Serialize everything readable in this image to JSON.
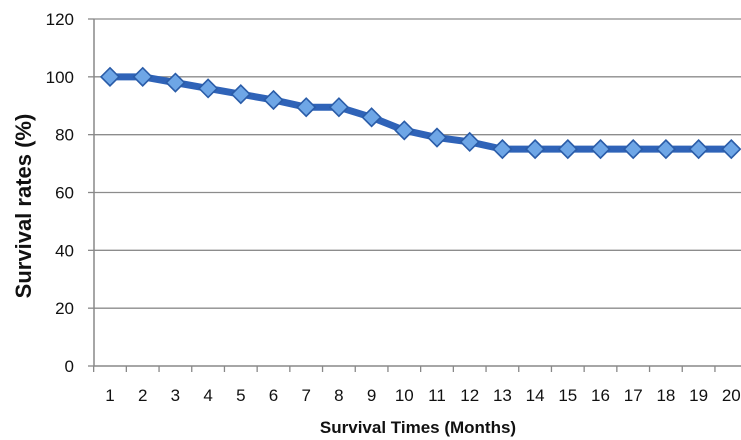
{
  "chart_data": {
    "type": "line",
    "title": "",
    "xlabel": "Survival Times (Months)",
    "ylabel": "Survival rates (%)",
    "x": [
      1,
      2,
      3,
      4,
      5,
      6,
      7,
      8,
      9,
      10,
      11,
      12,
      13,
      14,
      15,
      16,
      17,
      18,
      19,
      20
    ],
    "x_tick_labels": [
      "1",
      "2",
      "3",
      "4",
      "5",
      "6",
      "7",
      "8",
      "9",
      "10",
      "11",
      "12",
      "13",
      "14",
      "15",
      "16",
      "17",
      "18",
      "19",
      "20"
    ],
    "y_tick_labels": [
      "0",
      "20",
      "40",
      "60",
      "80",
      "100",
      "120"
    ],
    "y_ticks": [
      0,
      20,
      40,
      60,
      80,
      100,
      120
    ],
    "ylim": [
      0,
      120
    ],
    "grid": "horizontal",
    "legend": "none",
    "series": [
      {
        "values": [
          100,
          100,
          98,
          96,
          94,
          92,
          89.5,
          89.5,
          86,
          81.5,
          79,
          77.5,
          75,
          75,
          75,
          75,
          75,
          75,
          75,
          75
        ],
        "line_color": "#2f63b8",
        "marker_fill": "#6ea6e6",
        "marker": "diamond"
      }
    ]
  }
}
